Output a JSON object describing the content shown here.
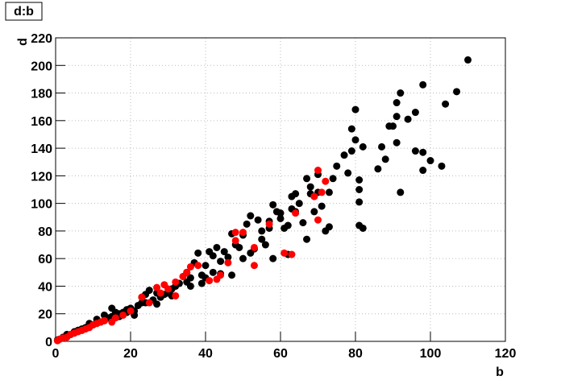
{
  "chart_data": {
    "type": "scatter",
    "title": "d:b",
    "x_label": "b",
    "y_label": "d",
    "xlim": [
      0,
      120
    ],
    "ylim": [
      0,
      220
    ],
    "xticks": [
      0,
      20,
      40,
      60,
      80,
      100,
      120
    ],
    "yticks": [
      0,
      20,
      40,
      60,
      80,
      100,
      120,
      140,
      160,
      180,
      200,
      220
    ],
    "grid": true,
    "series": [
      {
        "color": "#000000",
        "x": [
          110,
          107,
          104,
          103,
          100,
          98,
          98,
          98,
          96,
          96,
          94,
          92,
          92,
          91,
          91,
          91,
          90,
          89,
          88,
          87,
          86,
          82,
          82,
          81,
          81,
          81,
          81,
          80,
          80,
          79,
          79,
          78,
          77,
          75,
          74,
          73,
          73,
          72,
          71,
          70,
          70,
          69,
          68,
          68,
          67,
          67,
          66,
          65,
          64,
          64,
          63,
          63,
          62,
          62,
          61,
          60,
          60,
          59,
          58,
          57,
          57,
          56,
          55,
          54,
          53,
          52,
          51,
          50,
          50,
          49,
          48,
          47,
          46,
          45,
          44,
          43,
          42,
          42,
          41,
          40,
          40,
          39,
          38,
          37,
          36,
          35,
          35,
          34,
          33,
          32,
          31,
          30,
          29,
          28,
          27,
          26,
          25,
          24,
          24,
          23,
          22,
          21,
          20,
          19,
          18,
          17,
          16,
          15,
          15,
          14,
          13,
          12,
          11,
          10,
          9,
          8,
          7,
          6,
          5,
          4,
          3,
          2,
          1,
          0.5,
          3,
          5,
          7,
          9,
          11,
          13,
          17,
          19,
          21,
          23,
          27,
          31,
          36,
          39,
          44,
          47,
          52,
          55,
          58
        ],
        "values": [
          204,
          181,
          172,
          127,
          131,
          186,
          137,
          124,
          166,
          138,
          161,
          180,
          108,
          173,
          144,
          163,
          156,
          156,
          132,
          141,
          125,
          82,
          141,
          117,
          110,
          101,
          84,
          168,
          146,
          154,
          138,
          122,
          135,
          127,
          118,
          108,
          83,
          80,
          98,
          121,
          108,
          94,
          112,
          107,
          74,
          118,
          86,
          100,
          107,
          94,
          105,
          96,
          63,
          84,
          82,
          89,
          93,
          94,
          99,
          87,
          82,
          70,
          80,
          88,
          67,
          91,
          85,
          77,
          60,
          68,
          70,
          78,
          61,
          65,
          58,
          68,
          50,
          62,
          65,
          55,
          46,
          48,
          64,
          57,
          46,
          43,
          50,
          47,
          42,
          40,
          38,
          35,
          34,
          32,
          35,
          30,
          37,
          34,
          28,
          32,
          26,
          22,
          24,
          23,
          21,
          20,
          21,
          18,
          24,
          17,
          19,
          14,
          16,
          12,
          13,
          10,
          9,
          8,
          7,
          5,
          4,
          3,
          1.5,
          1,
          5,
          6,
          8,
          11,
          13,
          15,
          18,
          21,
          19,
          28,
          27,
          33,
          40,
          42,
          49,
          48,
          64,
          74,
          60
        ]
      },
      {
        "color": "#ff0000",
        "x": [
          70,
          72,
          71,
          69,
          70,
          64,
          61,
          63,
          57,
          53,
          53,
          50,
          48,
          48,
          46,
          44,
          43,
          41,
          38,
          36,
          35,
          34,
          32,
          32,
          30,
          29,
          28,
          27,
          25,
          23,
          20,
          18,
          16,
          15,
          13,
          12,
          11,
          10,
          9,
          8,
          7,
          6,
          5,
          4,
          3,
          2,
          1,
          0.5
        ],
        "values": [
          124,
          116,
          108,
          105,
          88,
          93,
          64,
          63,
          85,
          55,
          68,
          79,
          79,
          73,
          57,
          48,
          45,
          44,
          55,
          54,
          50,
          47,
          43,
          33,
          38,
          41,
          35,
          39,
          28,
          32,
          22,
          19,
          17,
          14,
          15,
          14,
          13,
          12,
          10,
          9,
          8,
          7,
          6,
          5,
          3,
          2.5,
          1.5,
          0.5
        ]
      }
    ]
  }
}
